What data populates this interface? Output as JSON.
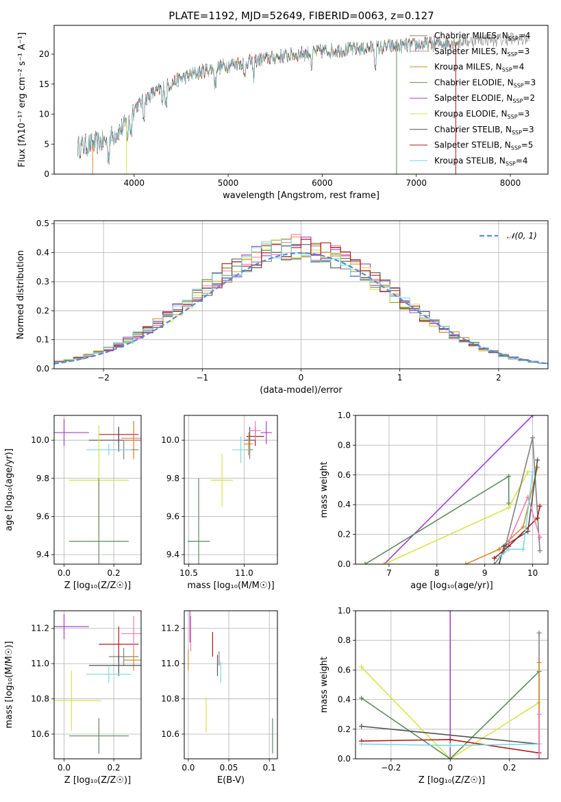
{
  "figure_title": "PLATE=1192, MJD=52649, FIBERID=0063, z=0.127",
  "model_colors": [
    "#808080",
    "#f07ab0",
    "#d58c2a",
    "#5b8a5b",
    "#a040c0",
    "#d7e34a",
    "#505050",
    "#b01818",
    "#7ad8e0"
  ],
  "chart_data": [
    {
      "id": "spectrum",
      "type": "line",
      "title": "PLATE=1192, MJD=52649, FIBERID=0063, z=0.127",
      "xlabel": "wavelength [Angstrom, rest frame]",
      "ylabel": "Flux [fλ10⁻¹⁷ erg cm⁻² s⁻¹ A⁻¹]",
      "xlim": [
        3150,
        8400
      ],
      "ylim": [
        0,
        24.8
      ],
      "xticks": [
        4000,
        5000,
        6000,
        7000,
        8000
      ],
      "yticks": [
        0,
        5,
        10,
        15,
        20
      ],
      "grid": false,
      "legend_position": "lower-right",
      "series": [
        {
          "name": "Chabrier MILES, NSSP=4"
        },
        {
          "name": "Salpeter MILES, NSSP=3"
        },
        {
          "name": "Kroupa MILES, NSSP=4"
        },
        {
          "name": "Chabrier ELODIE, NSSP=3"
        },
        {
          "name": "Salpeter ELODIE, NSSP=2"
        },
        {
          "name": "Kroupa ELODIE, NSSP=3"
        },
        {
          "name": "Chabrier STELIB, NSSP=3"
        },
        {
          "name": "Salpeter STELIB, NSSP=5"
        },
        {
          "name": "Kroupa STELIB, NSSP=4"
        }
      ],
      "continuum": [
        [
          3400,
          4.5
        ],
        [
          3700,
          5.5
        ],
        [
          3900,
          8
        ],
        [
          4000,
          11
        ],
        [
          4200,
          13.5
        ],
        [
          4500,
          16
        ],
        [
          4800,
          17.5
        ],
        [
          5100,
          18.5
        ],
        [
          5500,
          19.5
        ],
        [
          6000,
          20.5
        ],
        [
          6500,
          21
        ],
        [
          7000,
          21.5
        ],
        [
          7400,
          22
        ],
        [
          7800,
          22.5
        ],
        [
          8200,
          22.5
        ]
      ]
    },
    {
      "id": "residuals",
      "type": "histogram",
      "xlabel": "(data-model)/error",
      "ylabel": "Normed distribution",
      "xlim": [
        -2.5,
        2.5
      ],
      "ylim": [
        0,
        0.51
      ],
      "xticks": [
        -2,
        -1,
        0,
        1,
        2
      ],
      "yticks": [
        0.0,
        0.1,
        0.2,
        0.3,
        0.4,
        0.5
      ],
      "grid": true,
      "legend_position": "top-right",
      "legend": "𝒩(0, 1)"
    },
    {
      "id": "age_vs_Z",
      "type": "scatter",
      "xlabel": "Z [log₁₀(Z/Z☉)]",
      "ylabel": "age  [log₁₀(age/yr)]",
      "xlim": [
        -0.04,
        0.31
      ],
      "ylim": [
        9.35,
        10.13
      ],
      "xticks": [
        0.0,
        0.2
      ],
      "yticks": [
        9.4,
        9.6,
        9.8,
        10.0
      ],
      "points": [
        {
          "x": 0.0,
          "y": 10.04,
          "ex": 0.1,
          "ey": 0.07,
          "c": 4
        },
        {
          "x": 0.22,
          "y": 10.03,
          "ex": 0.08,
          "ey": 0.04,
          "c": 7
        },
        {
          "x": 0.22,
          "y": 10.0,
          "ex": 0.12,
          "ey": 0.06,
          "c": 6
        },
        {
          "x": 0.28,
          "y": 10.01,
          "ex": 0.05,
          "ey": 0.09,
          "c": 1
        },
        {
          "x": 0.28,
          "y": 10.0,
          "ex": 0.04,
          "ey": 0.1,
          "c": 2
        },
        {
          "x": 0.24,
          "y": 9.95,
          "ex": 0.06,
          "ey": 0.05,
          "c": 0
        },
        {
          "x": 0.18,
          "y": 9.95,
          "ex": 0.09,
          "ey": 0.03,
          "c": 8
        },
        {
          "x": 0.14,
          "y": 9.79,
          "ex": 0.12,
          "ey": 0.29,
          "c": 5
        },
        {
          "x": 0.14,
          "y": 9.47,
          "ex": 0.12,
          "ey": 0.33,
          "c": 3
        }
      ]
    },
    {
      "id": "age_vs_mass",
      "type": "scatter",
      "xlabel": "mass [log₁₀(M/M☉)]",
      "ylabel": "",
      "xlim": [
        10.46,
        11.3
      ],
      "ylim": [
        9.35,
        10.13
      ],
      "xticks": [
        10.5,
        11.0
      ],
      "yticks": [
        9.4,
        9.6,
        9.8,
        10.0
      ],
      "points": [
        {
          "x": 11.2,
          "y": 10.04,
          "ex": 0.05,
          "ey": 0.06,
          "c": 4
        },
        {
          "x": 11.1,
          "y": 10.02,
          "ex": 0.08,
          "ey": 0.05,
          "c": 7
        },
        {
          "x": 11.05,
          "y": 10.0,
          "ex": 0.05,
          "ey": 0.07,
          "c": 6
        },
        {
          "x": 11.1,
          "y": 10.05,
          "ex": 0.05,
          "ey": 0.05,
          "c": 1
        },
        {
          "x": 11.04,
          "y": 9.98,
          "ex": 0.04,
          "ey": 0.06,
          "c": 2
        },
        {
          "x": 11.05,
          "y": 9.95,
          "ex": 0.03,
          "ey": 0.05,
          "c": 0
        },
        {
          "x": 10.97,
          "y": 9.95,
          "ex": 0.08,
          "ey": 0.07,
          "c": 8
        },
        {
          "x": 10.8,
          "y": 9.79,
          "ex": 0.1,
          "ey": 0.14,
          "c": 5
        },
        {
          "x": 10.59,
          "y": 9.47,
          "ex": 0.1,
          "ey": 0.33,
          "c": 3
        }
      ]
    },
    {
      "id": "mass_weight_vs_age",
      "type": "line",
      "xlabel": "age  [log₁₀(age/yr)]",
      "ylabel": "mass weight",
      "xlim": [
        6.3,
        10.32
      ],
      "ylim": [
        0,
        1.0
      ],
      "xticks": [
        7,
        8,
        9,
        10
      ],
      "yticks": [
        0.0,
        0.2,
        0.4,
        0.6,
        0.8,
        1.0
      ],
      "series": [
        {
          "c": 4,
          "x": [
            6.9,
            10.0
          ],
          "y": [
            0.0,
            1.0
          ]
        },
        {
          "c": 3,
          "x": [
            6.5,
            9.5,
            9.5
          ],
          "y": [
            0.0,
            0.59,
            0.41
          ]
        },
        {
          "c": 5,
          "x": [
            6.9,
            9.5,
            9.9
          ],
          "y": [
            0.0,
            0.38,
            0.62
          ]
        },
        {
          "c": 2,
          "x": [
            8.6,
            9.3,
            9.8,
            10.1
          ],
          "y": [
            0.0,
            0.1,
            0.25,
            0.65
          ]
        },
        {
          "c": 0,
          "x": [
            9.2,
            9.4,
            10.0,
            10.15
          ],
          "y": [
            0.0,
            0.08,
            0.85,
            0.09
          ]
        },
        {
          "c": 6,
          "x": [
            9.3,
            9.4,
            9.9,
            10.1
          ],
          "y": [
            0.0,
            0.12,
            0.22,
            0.7
          ]
        },
        {
          "c": 7,
          "x": [
            9.2,
            9.5,
            10.1,
            10.15
          ],
          "y": [
            0.04,
            0.12,
            0.31,
            0.39
          ]
        },
        {
          "c": 1,
          "x": [
            9.5,
            9.9,
            10.15
          ],
          "y": [
            0.15,
            0.45,
            0.18
          ]
        },
        {
          "c": 8,
          "x": [
            9.3,
            9.5,
            9.8,
            10.0
          ],
          "y": [
            0.05,
            0.1,
            0.1,
            0.62
          ]
        }
      ]
    },
    {
      "id": "mass_vs_Z",
      "type": "scatter",
      "xlabel": "Z [log₁₀(Z/Z☉)]",
      "ylabel": "mass [log₁₀(M/M☉)]",
      "xlim": [
        -0.04,
        0.31
      ],
      "ylim": [
        10.46,
        11.3
      ],
      "xticks": [
        0.0,
        0.2
      ],
      "yticks": [
        10.6,
        10.8,
        11.0,
        11.2
      ],
      "points": [
        {
          "x": 0.0,
          "y": 11.21,
          "ex": 0.1,
          "ey": 0.07,
          "c": 4
        },
        {
          "x": 0.22,
          "y": 11.11,
          "ex": 0.08,
          "ey": 0.1,
          "c": 7
        },
        {
          "x": 0.28,
          "y": 11.17,
          "ex": 0.05,
          "ey": 0.1,
          "c": 1
        },
        {
          "x": 0.24,
          "y": 11.04,
          "ex": 0.06,
          "ey": 0.05,
          "c": 0
        },
        {
          "x": 0.28,
          "y": 11.02,
          "ex": 0.04,
          "ey": 0.06,
          "c": 2
        },
        {
          "x": 0.22,
          "y": 10.99,
          "ex": 0.12,
          "ey": 0.06,
          "c": 6
        },
        {
          "x": 0.18,
          "y": 10.94,
          "ex": 0.09,
          "ey": 0.05,
          "c": 8
        },
        {
          "x": 0.03,
          "y": 10.79,
          "ex": 0.12,
          "ey": 0.17,
          "c": 5
        },
        {
          "x": 0.14,
          "y": 10.59,
          "ex": 0.12,
          "ey": 0.1,
          "c": 3
        }
      ]
    },
    {
      "id": "mass_vs_ebv",
      "type": "scatter",
      "xlabel": "E(B-V)",
      "ylabel": "",
      "xlim": [
        -0.005,
        0.11
      ],
      "ylim": [
        10.46,
        11.3
      ],
      "xticks": [
        0.0,
        0.05,
        0.1
      ],
      "yticks": [
        10.6,
        10.8,
        11.0,
        11.2
      ],
      "points": [
        {
          "x": 0.002,
          "y": 11.21,
          "ex": 0,
          "ey": 0.09,
          "c": 4
        },
        {
          "x": 0.003,
          "y": 11.17,
          "ex": 0,
          "ey": 0.1,
          "c": 1
        },
        {
          "x": 0.0,
          "y": 11.02,
          "ex": 0,
          "ey": 0.06,
          "c": 2
        },
        {
          "x": 0.03,
          "y": 11.11,
          "ex": 0,
          "ey": 0.07,
          "c": 7
        },
        {
          "x": 0.036,
          "y": 10.99,
          "ex": 0,
          "ey": 0.06,
          "c": 6
        },
        {
          "x": 0.04,
          "y": 10.95,
          "ex": 0,
          "ey": 0.06,
          "c": 8
        },
        {
          "x": 0.038,
          "y": 11.03,
          "ex": 0,
          "ey": 0.04,
          "c": 0
        },
        {
          "x": 0.022,
          "y": 10.71,
          "ex": 0,
          "ey": 0.1,
          "c": 5
        },
        {
          "x": 0.104,
          "y": 10.59,
          "ex": 0,
          "ey": 0.1,
          "c": 3
        }
      ]
    },
    {
      "id": "mass_weight_vs_Z",
      "type": "line",
      "xlabel": "Z [log₁₀(Z/Z☉)]",
      "ylabel": "mass weight",
      "xlim": [
        -0.32,
        0.33
      ],
      "ylim": [
        0,
        1.0
      ],
      "xticks": [
        -0.2,
        0.0,
        0.2
      ],
      "yticks": [
        0.0,
        0.2,
        0.4,
        0.6,
        0.8,
        1.0
      ],
      "series": [
        {
          "c": 4,
          "x": [
            0.0,
            0.0
          ],
          "y": [
            0.0,
            1.0
          ]
        },
        {
          "c": 5,
          "x": [
            -0.3,
            0.0,
            0.3
          ],
          "y": [
            0.62,
            0.0,
            0.38
          ]
        },
        {
          "c": 3,
          "x": [
            -0.3,
            0.0,
            0.3
          ],
          "y": [
            0.41,
            0.0,
            0.59
          ]
        },
        {
          "c": 6,
          "x": [
            -0.3,
            0.3
          ],
          "y": [
            0.22,
            0.1
          ]
        },
        {
          "c": 7,
          "x": [
            -0.3,
            0.0,
            0.3
          ],
          "y": [
            0.12,
            0.13,
            0.04
          ]
        },
        {
          "c": 8,
          "x": [
            -0.3,
            0.0,
            0.3
          ],
          "y": [
            0.1,
            0.09,
            0.1
          ]
        },
        {
          "c": 0,
          "x": [
            0.3,
            0.3
          ],
          "y": [
            0.0,
            0.85
          ]
        },
        {
          "c": 2,
          "x": [
            0.3,
            0.3
          ],
          "y": [
            0.0,
            0.65
          ]
        },
        {
          "c": 1,
          "x": [
            0.3,
            0.3
          ],
          "y": [
            0.0,
            0.3
          ]
        }
      ]
    }
  ]
}
